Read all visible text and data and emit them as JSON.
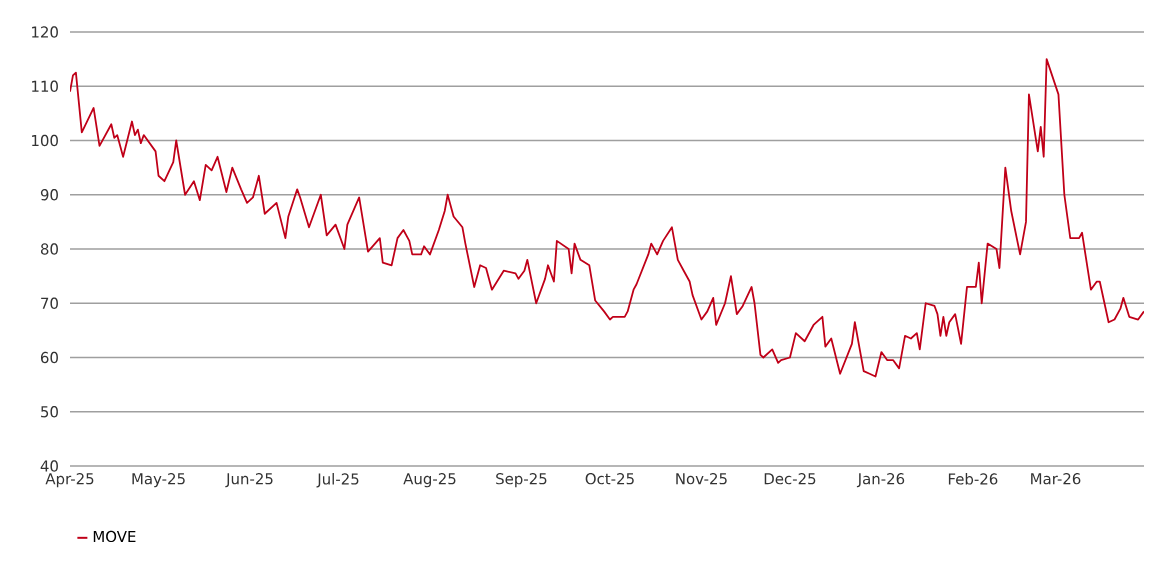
{
  "chart_data": {
    "type": "line",
    "xlim": [
      "2025-04-01",
      "2026-03-31"
    ],
    "ylim": [
      40,
      120
    ],
    "yticks": [
      40,
      50,
      60,
      70,
      80,
      90,
      100,
      110,
      120
    ],
    "xticks": [
      {
        "value": "2025-04-01",
        "label": "Apr-25"
      },
      {
        "value": "2025-05-01",
        "label": "May-25"
      },
      {
        "value": "2025-06-01",
        "label": "Jun-25"
      },
      {
        "value": "2025-07-01",
        "label": "Jul-25"
      },
      {
        "value": "2025-08-01",
        "label": "Aug-25"
      },
      {
        "value": "2025-09-01",
        "label": "Sep-25"
      },
      {
        "value": "2025-10-01",
        "label": "Oct-25"
      },
      {
        "value": "2025-11-01",
        "label": "Nov-25"
      },
      {
        "value": "2025-12-01",
        "label": "Dec-25"
      },
      {
        "value": "2026-01-01",
        "label": "Jan-26"
      },
      {
        "value": "2026-02-01",
        "label": "Feb-26"
      },
      {
        "value": "2026-03-01",
        "label": "Mar-26"
      }
    ],
    "grid": "y",
    "legend": "bottom left",
    "marker": "none",
    "line_style": "solid",
    "x": [
      "2025-04-01",
      "2025-04-02",
      "2025-04-03",
      "2025-04-05",
      "2025-04-09",
      "2025-04-11",
      "2025-04-15",
      "2025-04-16",
      "2025-04-17",
      "2025-04-19",
      "2025-04-22",
      "2025-04-23",
      "2025-04-24",
      "2025-04-25",
      "2025-04-26",
      "2025-04-30",
      "2025-05-01",
      "2025-05-03",
      "2025-05-06",
      "2025-05-07",
      "2025-05-10",
      "2025-05-13",
      "2025-05-15",
      "2025-05-17",
      "2025-05-19",
      "2025-05-21",
      "2025-05-24",
      "2025-05-26",
      "2025-05-29",
      "2025-05-31",
      "2025-06-02",
      "2025-06-04",
      "2025-06-06",
      "2025-06-10",
      "2025-06-13",
      "2025-06-14",
      "2025-06-17",
      "2025-06-18",
      "2025-06-21",
      "2025-06-25",
      "2025-06-27",
      "2025-06-30",
      "2025-07-03",
      "2025-07-04",
      "2025-07-08",
      "2025-07-11",
      "2025-07-15",
      "2025-07-16",
      "2025-07-19",
      "2025-07-21",
      "2025-07-23",
      "2025-07-25",
      "2025-07-26",
      "2025-07-29",
      "2025-07-30",
      "2025-08-01",
      "2025-08-04",
      "2025-08-06",
      "2025-08-07",
      "2025-08-09",
      "2025-08-12",
      "2025-08-13",
      "2025-08-16",
      "2025-08-18",
      "2025-08-20",
      "2025-08-22",
      "2025-08-26",
      "2025-08-30",
      "2025-08-31",
      "2025-09-02",
      "2025-09-03",
      "2025-09-06",
      "2025-09-09",
      "2025-09-10",
      "2025-09-12",
      "2025-09-13",
      "2025-09-17",
      "2025-09-18",
      "2025-09-19",
      "2025-09-21",
      "2025-09-24",
      "2025-09-26",
      "2025-09-29",
      "2025-10-01",
      "2025-10-02",
      "2025-10-06",
      "2025-10-07",
      "2025-10-09",
      "2025-10-10",
      "2025-10-14",
      "2025-10-15",
      "2025-10-17",
      "2025-10-19",
      "2025-10-22",
      "2025-10-24",
      "2025-10-26",
      "2025-10-28",
      "2025-10-29",
      "2025-11-01",
      "2025-11-03",
      "2025-11-05",
      "2025-11-06",
      "2025-11-09",
      "2025-11-11",
      "2025-11-13",
      "2025-11-15",
      "2025-11-18",
      "2025-11-19",
      "2025-11-21",
      "2025-11-22",
      "2025-11-25",
      "2025-11-27",
      "2025-11-28",
      "2025-12-01",
      "2025-12-03",
      "2025-12-06",
      "2025-12-09",
      "2025-12-12",
      "2025-12-13",
      "2025-12-15",
      "2025-12-18",
      "2025-12-22",
      "2025-12-23",
      "2025-12-26",
      "2025-12-28",
      "2025-12-30",
      "2026-01-01",
      "2026-01-03",
      "2026-01-05",
      "2026-01-07",
      "2026-01-09",
      "2026-01-11",
      "2026-01-13",
      "2026-01-14",
      "2026-01-16",
      "2026-01-19",
      "2026-01-20",
      "2026-01-21",
      "2026-01-22",
      "2026-01-23",
      "2026-01-24",
      "2026-01-26",
      "2026-01-28",
      "2026-01-30",
      "2026-02-02",
      "2026-02-03",
      "2026-02-04",
      "2026-02-06",
      "2026-02-09",
      "2026-02-10",
      "2026-02-12",
      "2026-02-14",
      "2026-02-17",
      "2026-02-19",
      "2026-02-20",
      "2026-02-23",
      "2026-02-24",
      "2026-02-25",
      "2026-02-26",
      "2026-03-02",
      "2026-03-04",
      "2026-03-06",
      "2026-03-09",
      "2026-03-10",
      "2026-03-13",
      "2026-03-15",
      "2026-03-16",
      "2026-03-19",
      "2026-03-21",
      "2026-03-23",
      "2026-03-24",
      "2026-03-26",
      "2026-03-29",
      "2026-03-31"
    ],
    "series": [
      {
        "name": "MOVE",
        "color": "#c00018",
        "values": [
          109,
          112,
          112.5,
          101.5,
          106,
          99,
          103,
          100.5,
          101,
          97,
          103.5,
          101,
          102,
          99.5,
          101,
          98,
          93.5,
          92.5,
          96,
          100,
          90,
          92.5,
          89,
          95.5,
          94.5,
          97,
          90.5,
          95,
          91,
          88.5,
          89.5,
          93.5,
          86.5,
          88.5,
          82,
          86,
          91,
          89.5,
          84,
          90,
          82.5,
          84.5,
          80,
          84.5,
          89.5,
          79.5,
          82,
          77.5,
          77,
          82,
          83.5,
          81.5,
          79,
          79,
          80.5,
          79,
          83.5,
          87,
          90,
          86,
          84,
          81,
          73,
          77,
          76.5,
          72.5,
          76,
          75.5,
          74.5,
          76,
          78,
          70,
          74.5,
          77,
          74,
          81.5,
          80,
          75.5,
          81,
          78,
          77,
          70.5,
          68.5,
          67,
          67.5,
          67.5,
          68.5,
          72.5,
          73.5,
          79,
          81,
          79,
          81.5,
          84,
          78,
          76,
          74,
          71.5,
          67,
          68.5,
          71,
          66,
          70,
          75,
          68,
          69.5,
          73,
          70,
          60.5,
          60,
          61.5,
          59,
          59.5,
          60,
          64.5,
          63,
          66,
          67.5,
          62,
          63.5,
          57,
          62.5,
          66.5,
          57.5,
          57,
          56.5,
          61,
          59.5,
          59.5,
          58,
          64,
          63.5,
          64.5,
          61.5,
          70,
          69.5,
          68,
          64,
          67.5,
          64,
          66.5,
          68,
          62.5,
          73,
          73,
          77.5,
          70,
          81,
          80,
          76.5,
          95,
          87,
          79,
          85,
          108.5,
          98,
          102.5,
          97,
          115,
          108.5,
          90,
          82,
          82,
          83,
          72.5,
          74,
          74,
          66.5,
          67,
          69,
          71,
          67.5,
          67,
          68.5
        ]
      }
    ]
  }
}
